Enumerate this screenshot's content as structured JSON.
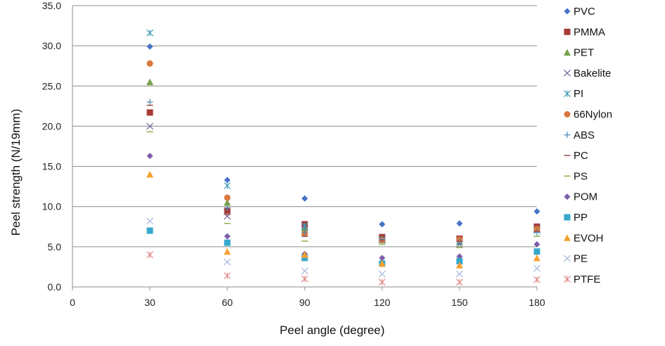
{
  "chart_data": {
    "type": "scatter",
    "xlabel": "Peel angle (degree)",
    "ylabel": "Peel strength (N/19mm)",
    "xlim": [
      0,
      180
    ],
    "ylim": [
      0,
      35
    ],
    "x_ticks": [
      "0",
      "30",
      "60",
      "90",
      "120",
      "150",
      "180"
    ],
    "y_ticks": [
      "0.0",
      "5.0",
      "10.0",
      "15.0",
      "20.0",
      "25.0",
      "30.0",
      "35.0"
    ],
    "grid": "horizontal",
    "legend_position": "right",
    "x": [
      30,
      60,
      90,
      120,
      150,
      180
    ],
    "series": [
      {
        "name": "PVC",
        "marker": "diamond",
        "color": "#4472C4",
        "values": [
          29.9,
          13.3,
          11.0,
          7.8,
          7.9,
          9.4
        ]
      },
      {
        "name": "PMMA",
        "marker": "square",
        "color": "#A83A36",
        "values": [
          21.7,
          9.5,
          7.8,
          6.2,
          6.0,
          7.5
        ]
      },
      {
        "name": "PET",
        "marker": "triangle",
        "color": "#77A04B",
        "values": [
          25.5,
          10.5,
          7.3,
          6.0,
          5.6,
          7.2
        ]
      },
      {
        "name": "Bakelite",
        "marker": "x",
        "color": "#7763A3",
        "values": [
          20.0,
          8.8,
          7.5,
          5.9,
          5.3,
          7.3
        ]
      },
      {
        "name": "PI",
        "marker": "asterisk",
        "color": "#3E9CB5",
        "values": [
          31.6,
          12.6,
          7.6,
          5.8,
          5.6,
          7.0
        ]
      },
      {
        "name": "66Nylon",
        "marker": "circle",
        "color": "#D9773C",
        "values": [
          27.8,
          11.1,
          6.6,
          5.8,
          5.9,
          7.2
        ]
      },
      {
        "name": "ABS",
        "marker": "plus",
        "color": "#4A86B0",
        "values": [
          23.0,
          9.8,
          6.8,
          5.9,
          5.7,
          6.8
        ]
      },
      {
        "name": "PC",
        "marker": "dash",
        "color": "#A05550",
        "values": [
          22.6,
          9.0,
          6.3,
          5.8,
          5.7,
          6.9
        ]
      },
      {
        "name": "PS",
        "marker": "dash",
        "color": "#8FB050",
        "values": [
          19.3,
          7.9,
          5.7,
          5.3,
          4.9,
          6.3
        ]
      },
      {
        "name": "POM",
        "marker": "diamond",
        "color": "#7E5DA8",
        "values": [
          16.3,
          6.3,
          4.1,
          3.6,
          3.8,
          5.3
        ]
      },
      {
        "name": "PP",
        "marker": "square",
        "color": "#35A8CC",
        "values": [
          7.0,
          5.5,
          3.6,
          2.9,
          3.2,
          4.4
        ]
      },
      {
        "name": "EVOH",
        "marker": "triangle",
        "color": "#F7A030",
        "values": [
          14.0,
          4.4,
          4.0,
          2.9,
          2.7,
          3.6
        ]
      },
      {
        "name": "PE",
        "marker": "x",
        "color": "#A8B8DD",
        "values": [
          8.2,
          3.1,
          2.0,
          1.6,
          1.6,
          2.3
        ]
      },
      {
        "name": "PTFE",
        "marker": "asterisk",
        "color": "#E08A88",
        "values": [
          4.0,
          1.4,
          1.0,
          0.6,
          0.6,
          0.9
        ]
      }
    ]
  }
}
